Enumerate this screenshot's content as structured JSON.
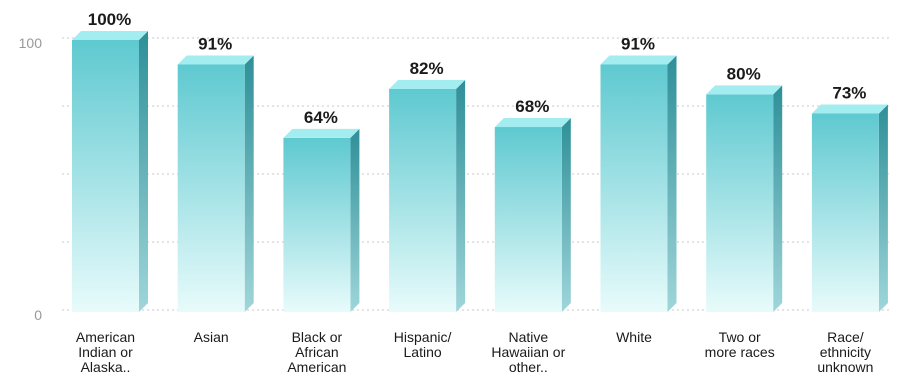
{
  "chart_data": {
    "type": "bar",
    "categories": [
      "American Indian or Alaska..",
      "Asian",
      "Black or African American",
      "Hispanic/ Latino",
      "Native Hawaiian or other..",
      "White",
      "Two or more races",
      "Race/ ethnicity unknown"
    ],
    "category_lines": [
      [
        "American",
        "Indian or",
        "Alaska.."
      ],
      [
        "Asian"
      ],
      [
        "Black or",
        "African",
        "American"
      ],
      [
        "Hispanic/",
        "Latino"
      ],
      [
        "Native",
        "Hawaiian or",
        "other.."
      ],
      [
        "White"
      ],
      [
        "Two or",
        "more races"
      ],
      [
        "Race/",
        "ethnicity",
        "unknown"
      ]
    ],
    "values": [
      100,
      91,
      64,
      82,
      68,
      91,
      80,
      73
    ],
    "data_labels": [
      "100%",
      "91%",
      "64%",
      "82%",
      "68%",
      "91%",
      "80%",
      "73%"
    ],
    "y_ticks": [
      0,
      100
    ],
    "ylim": [
      0,
      100
    ],
    "grid": "horizontal dotted",
    "colors": {
      "bar_top": "#5ec9d0",
      "bar_bottom": "#e8fbfb",
      "bar_cap": "#a3edf0",
      "bar_side_top": "#2e8f98",
      "bar_side_bottom": "#9fd6da",
      "grid": "#c8c8c8",
      "axis_text": "#999999",
      "label_text": "#1a1a1a"
    }
  }
}
